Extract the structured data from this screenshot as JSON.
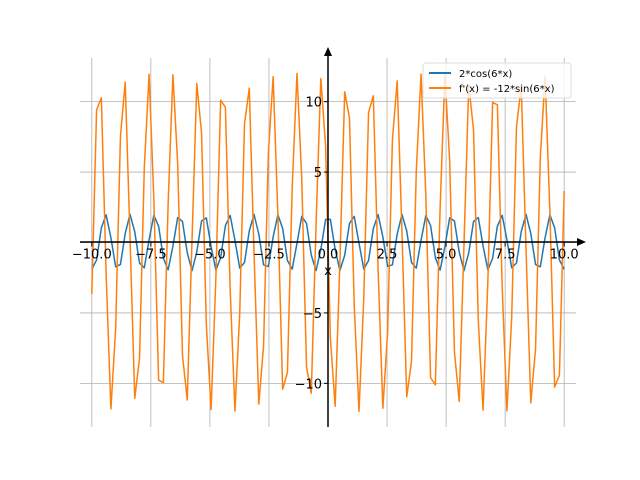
{
  "chart_data": {
    "type": "line",
    "title": "",
    "xlabel": "x",
    "ylabel": "",
    "xlim": [
      -10.5,
      10.5
    ],
    "ylim": [
      -13.1,
      13.1
    ],
    "grid": true,
    "legend_position": "top-right",
    "sampling": {
      "start": -10,
      "stop": 10,
      "n_points": 100
    },
    "x_ticks": [
      -10.0,
      -7.5,
      -5.0,
      -2.5,
      0.0,
      2.5,
      5.0,
      7.5,
      10.0
    ],
    "x_tick_labels": [
      "−10.0",
      "−7.5",
      "−5.0",
      "−2.5",
      "0.0",
      "2.5",
      "5.0",
      "7.5",
      "10.0"
    ],
    "y_ticks": [
      -10,
      -5,
      0,
      5,
      10
    ],
    "y_tick_labels": [
      "−10",
      "−5",
      "0",
      "5",
      "10"
    ],
    "series": [
      {
        "name": "2*cos(6*x)",
        "function": "cos",
        "amplitude": 2,
        "frequency": 6,
        "color": "#1f77b4"
      },
      {
        "name": "f'(x) = -12*sin(6*x)",
        "function": "sin",
        "amplitude": -12,
        "frequency": 6,
        "color": "#ff7f0e"
      }
    ]
  }
}
